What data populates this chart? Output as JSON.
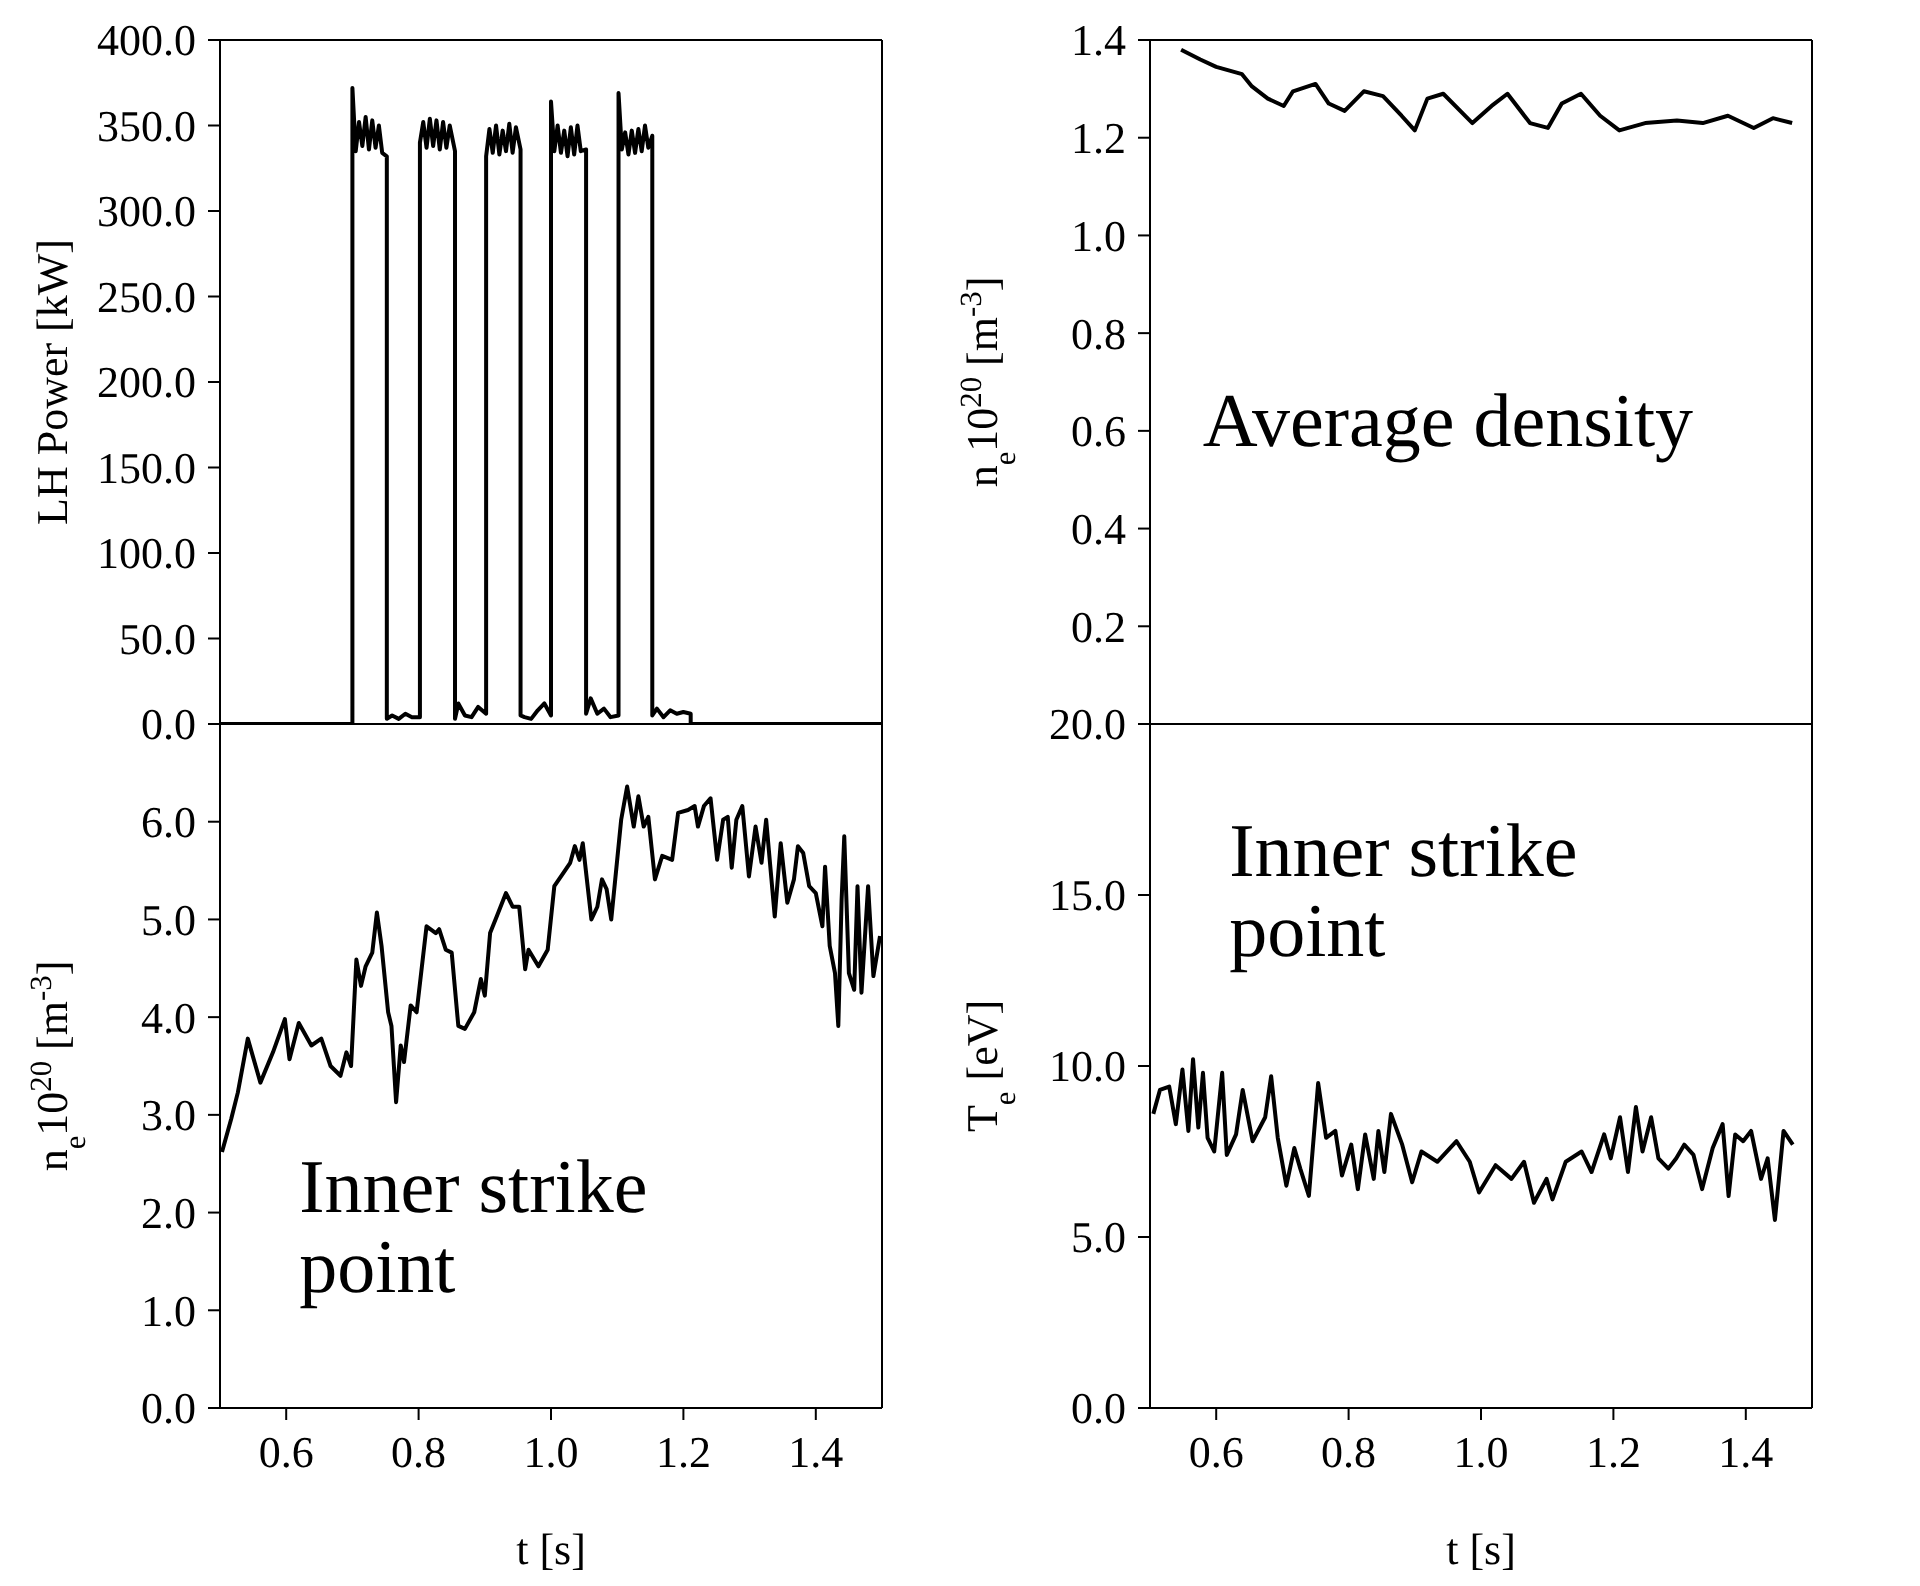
{
  "chart_data": [
    {
      "type": "line",
      "ylabel": "LH Power [kW]",
      "xlim": [
        0.5,
        1.5
      ],
      "xticks": [
        0.6,
        0.8,
        1,
        1.2,
        1.4
      ],
      "ylim": [
        0,
        400
      ],
      "yticks": [
        {
          "value": 0,
          "label": "0.0"
        },
        {
          "value": 50,
          "label": "50.0"
        },
        {
          "value": 100,
          "label": "100.0"
        },
        {
          "value": 150,
          "label": "150.0"
        },
        {
          "value": 200,
          "label": "200.0"
        },
        {
          "value": 250,
          "label": "250.0"
        },
        {
          "value": 300,
          "label": "300.0"
        },
        {
          "value": 350,
          "label": "350.0"
        },
        {
          "value": 400,
          "label": "400.0"
        }
      ],
      "tick_labels": "y",
      "marker": "none",
      "color": "#000000",
      "x": [
        0.5,
        0.7,
        0.7,
        0.705,
        0.71,
        0.715,
        0.72,
        0.725,
        0.73,
        0.735,
        0.74,
        0.745,
        0.752,
        0.752,
        0.76,
        0.77,
        0.78,
        0.79,
        0.802,
        0.802,
        0.807,
        0.812,
        0.817,
        0.822,
        0.827,
        0.832,
        0.837,
        0.842,
        0.847,
        0.855,
        0.855,
        0.86,
        0.87,
        0.88,
        0.89,
        0.902,
        0.902,
        0.907,
        0.912,
        0.917,
        0.922,
        0.927,
        0.932,
        0.937,
        0.942,
        0.947,
        0.954,
        0.954,
        0.96,
        0.97,
        0.98,
        0.99,
        1.0,
        1.0,
        1.005,
        1.01,
        1.015,
        1.02,
        1.025,
        1.03,
        1.035,
        1.04,
        1.045,
        1.053,
        1.053,
        1.06,
        1.07,
        1.08,
        1.09,
        1.102,
        1.102,
        1.107,
        1.112,
        1.117,
        1.122,
        1.127,
        1.132,
        1.137,
        1.142,
        1.147,
        1.153,
        1.153,
        1.16,
        1.17,
        1.18,
        1.19,
        1.2,
        1.211,
        1.211,
        1.5
      ],
      "values": [
        0,
        0,
        372,
        335,
        352,
        338,
        355,
        336,
        353,
        337,
        350,
        334,
        332,
        3,
        5,
        3,
        6,
        4,
        4,
        340,
        352,
        337,
        354,
        338,
        353,
        336,
        352,
        337,
        350,
        335,
        3,
        12,
        5,
        4,
        10,
        6,
        332,
        348,
        334,
        350,
        333,
        347,
        335,
        351,
        334,
        349,
        336,
        5,
        4,
        3,
        8,
        12,
        5,
        364,
        335,
        350,
        334,
        347,
        332,
        349,
        333,
        350,
        335,
        336,
        6,
        15,
        6,
        9,
        4,
        5,
        369,
        336,
        346,
        333,
        347,
        334,
        348,
        335,
        350,
        337,
        344,
        5,
        9,
        4,
        8,
        6,
        7,
        6,
        0,
        0
      ]
    },
    {
      "type": "line",
      "ylabel": "n$_{e}$10$^{20}$ [m$^{-3}$]",
      "annotations": [
        "Average density"
      ],
      "xlim": [
        0.5,
        1.5
      ],
      "xticks": [
        0.6,
        0.8,
        1,
        1.2,
        1.4
      ],
      "ylim": [
        0,
        1.4
      ],
      "yticks": [
        {
          "value": 0,
          "label": null
        },
        0.2,
        0.4,
        0.6,
        0.8,
        {
          "value": 1.0,
          "label": "1.0"
        },
        1.2,
        1.4
      ],
      "tick_labels": "y",
      "marker": "none",
      "color": "#000000",
      "x": [
        0.547,
        0.576,
        0.6,
        0.639,
        0.654,
        0.678,
        0.702,
        0.716,
        0.75,
        0.77,
        0.794,
        0.823,
        0.852,
        0.88,
        0.9,
        0.919,
        0.943,
        0.987,
        1.016,
        1.04,
        1.074,
        1.101,
        1.122,
        1.151,
        1.18,
        1.209,
        1.248,
        1.296,
        1.335,
        1.373,
        1.412,
        1.441,
        1.47
      ],
      "values": [
        1.38,
        1.36,
        1.345,
        1.33,
        1.305,
        1.28,
        1.265,
        1.295,
        1.31,
        1.27,
        1.255,
        1.295,
        1.285,
        1.245,
        1.215,
        1.28,
        1.29,
        1.23,
        1.265,
        1.29,
        1.23,
        1.22,
        1.27,
        1.29,
        1.245,
        1.215,
        1.23,
        1.235,
        1.23,
        1.245,
        1.22,
        1.24,
        1.23
      ]
    },
    {
      "type": "line",
      "ylabel": "n$_{e}$10$^{20}$ [m$^{-3}$]",
      "xlabel": "t [s]",
      "annotations": [
        "Inner strike\npoint"
      ],
      "xlim": [
        0.5,
        1.5
      ],
      "xticks": [
        0.6,
        0.8,
        {
          "value": 1.0,
          "label": "1.0"
        },
        1.2,
        1.4
      ],
      "ylim": [
        0,
        7
      ],
      "yticks": [
        {
          "value": 0,
          "label": "0.0"
        },
        {
          "value": 1,
          "label": "1.0"
        },
        {
          "value": 2,
          "label": "2.0"
        },
        {
          "value": 3,
          "label": "3.0"
        },
        {
          "value": 4,
          "label": "4.0"
        },
        {
          "value": 5,
          "label": "5.0"
        },
        {
          "value": 6,
          "label": "6.0"
        }
      ],
      "marker": "none",
      "color": "#000000",
      "x": [
        0.503,
        0.517,
        0.527,
        0.542,
        0.561,
        0.58,
        0.598,
        0.605,
        0.619,
        0.638,
        0.653,
        0.667,
        0.682,
        0.691,
        0.698,
        0.706,
        0.713,
        0.72,
        0.73,
        0.737,
        0.744,
        0.754,
        0.759,
        0.766,
        0.773,
        0.778,
        0.788,
        0.797,
        0.812,
        0.826,
        0.831,
        0.841,
        0.85,
        0.86,
        0.87,
        0.884,
        0.894,
        0.9,
        0.908,
        0.918,
        0.932,
        0.942,
        0.952,
        0.961,
        0.966,
        0.981,
        0.995,
        1.005,
        1.019,
        1.029,
        1.036,
        1.043,
        1.048,
        1.061,
        1.07,
        1.077,
        1.084,
        1.091,
        1.106,
        1.115,
        1.125,
        1.132,
        1.14,
        1.147,
        1.157,
        1.168,
        1.183,
        1.192,
        1.207,
        1.217,
        1.222,
        1.231,
        1.241,
        1.251,
        1.26,
        1.267,
        1.273,
        1.28,
        1.289,
        1.299,
        1.309,
        1.318,
        1.325,
        1.333,
        1.338,
        1.347,
        1.357,
        1.367,
        1.373,
        1.381,
        1.39,
        1.4,
        1.41,
        1.414,
        1.421,
        1.429,
        1.434,
        1.439,
        1.443,
        1.45,
        1.458,
        1.463,
        1.469,
        1.479,
        1.487,
        1.497
      ],
      "values": [
        2.62,
        2.96,
        3.23,
        3.78,
        3.33,
        3.64,
        3.98,
        3.57,
        3.94,
        3.71,
        3.78,
        3.5,
        3.4,
        3.64,
        3.5,
        4.59,
        4.32,
        4.52,
        4.66,
        5.07,
        4.73,
        4.05,
        3.91,
        3.13,
        3.71,
        3.54,
        4.12,
        4.05,
        4.93,
        4.86,
        4.9,
        4.69,
        4.66,
        3.91,
        3.88,
        4.05,
        4.39,
        4.22,
        4.86,
        5.03,
        5.27,
        5.13,
        5.13,
        4.49,
        4.69,
        4.52,
        4.69,
        5.34,
        5.48,
        5.58,
        5.75,
        5.61,
        5.78,
        5.0,
        5.13,
        5.41,
        5.31,
        5.0,
        6.02,
        6.36,
        5.95,
        6.26,
        5.95,
        6.05,
        5.41,
        5.65,
        5.61,
        6.09,
        6.12,
        6.16,
        5.95,
        6.16,
        6.24,
        5.61,
        6.02,
        6.05,
        5.53,
        6.02,
        6.16,
        5.44,
        5.95,
        5.58,
        6.02,
        5.41,
        5.03,
        5.78,
        5.17,
        5.41,
        5.75,
        5.68,
        5.34,
        5.27,
        4.93,
        5.54,
        4.73,
        4.45,
        3.91,
        5.2,
        5.85,
        4.45,
        4.28,
        5.34,
        4.25,
        5.34,
        4.42,
        4.83
      ]
    },
    {
      "type": "line",
      "ylabel": "T$_{e}$ [eV]",
      "xlabel": "t [s]",
      "annotations": [
        "Inner strike\npoint"
      ],
      "xlim": [
        0.5,
        1.5
      ],
      "xticks": [
        0.6,
        0.8,
        {
          "value": 1.0,
          "label": "1.0"
        },
        1.2,
        1.4
      ],
      "ylim": [
        0,
        20
      ],
      "yticks": [
        {
          "value": 0,
          "label": "0.0"
        },
        {
          "value": 5,
          "label": "5.0"
        },
        {
          "value": 10,
          "label": "10.0"
        },
        {
          "value": 15,
          "label": "15.0"
        },
        {
          "value": 20,
          "label": "20.0"
        }
      ],
      "marker": "none",
      "color": "#000000",
      "x": [
        0.505,
        0.515,
        0.529,
        0.539,
        0.549,
        0.558,
        0.565,
        0.573,
        0.58,
        0.587,
        0.597,
        0.609,
        0.616,
        0.63,
        0.64,
        0.655,
        0.674,
        0.683,
        0.693,
        0.706,
        0.718,
        0.727,
        0.74,
        0.754,
        0.766,
        0.78,
        0.79,
        0.804,
        0.814,
        0.825,
        0.838,
        0.845,
        0.854,
        0.864,
        0.881,
        0.896,
        0.91,
        0.934,
        0.963,
        0.983,
        0.997,
        1.022,
        1.046,
        1.065,
        1.08,
        1.099,
        1.108,
        1.128,
        1.152,
        1.167,
        1.186,
        1.196,
        1.21,
        1.222,
        1.234,
        1.244,
        1.257,
        1.268,
        1.283,
        1.295,
        1.307,
        1.321,
        1.334,
        1.35,
        1.365,
        1.374,
        1.384,
        1.396,
        1.408,
        1.423,
        1.433,
        1.444,
        1.457,
        1.471
      ],
      "values": [
        8.6,
        9.3,
        9.4,
        8.3,
        9.9,
        8.1,
        10.2,
        8.2,
        9.8,
        7.9,
        7.5,
        9.8,
        7.4,
        8.0,
        9.3,
        7.8,
        8.5,
        9.7,
        7.9,
        6.5,
        7.6,
        7.0,
        6.2,
        9.5,
        7.9,
        8.1,
        6.8,
        7.7,
        6.4,
        8.0,
        6.7,
        8.1,
        6.9,
        8.6,
        7.7,
        6.6,
        7.5,
        7.2,
        7.8,
        7.2,
        6.3,
        7.1,
        6.7,
        7.2,
        6.0,
        6.7,
        6.1,
        7.2,
        7.5,
        6.9,
        8.0,
        7.3,
        8.5,
        6.9,
        8.8,
        7.5,
        8.5,
        7.3,
        7.0,
        7.3,
        7.7,
        7.4,
        6.4,
        7.6,
        8.3,
        6.2,
        8.0,
        7.8,
        8.1,
        6.7,
        7.3,
        5.5,
        8.1,
        7.7
      ]
    }
  ]
}
